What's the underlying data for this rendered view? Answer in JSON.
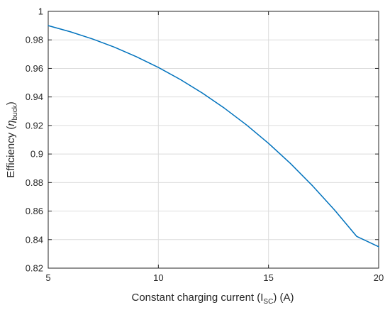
{
  "chart_data": {
    "type": "line",
    "title": "",
    "xlabel": {
      "main": "Constant charging current (I",
      "sub": "SC",
      "end": ")  (A)"
    },
    "ylabel": {
      "main": "Efficiency (",
      "eta": "η",
      "sub": "buck",
      "end": ")"
    },
    "xlim": [
      5,
      20
    ],
    "ylim": [
      0.82,
      1.0
    ],
    "xticks": [
      5,
      10,
      15,
      20
    ],
    "xtick_labels": [
      "5",
      "10",
      "15",
      "20"
    ],
    "yticks": [
      0.82,
      0.84,
      0.86,
      0.88,
      0.9,
      0.92,
      0.94,
      0.96,
      0.98,
      1.0
    ],
    "ytick_labels": [
      "0.82",
      "0.84",
      "0.86",
      "0.88",
      "0.9",
      "0.92",
      "0.94",
      "0.96",
      "0.98",
      "1"
    ],
    "grid": true,
    "series": [
      {
        "color": "#0072bd",
        "x": [
          5,
          6,
          7,
          8,
          9,
          10,
          11,
          12,
          13,
          14,
          15,
          16,
          17,
          18,
          19,
          20
        ],
        "y": [
          0.99,
          0.9857,
          0.9807,
          0.9749,
          0.9682,
          0.9607,
          0.9522,
          0.9427,
          0.9321,
          0.9204,
          0.9075,
          0.8933,
          0.8777,
          0.8607,
          0.8423,
          0.835
        ]
      }
    ]
  }
}
